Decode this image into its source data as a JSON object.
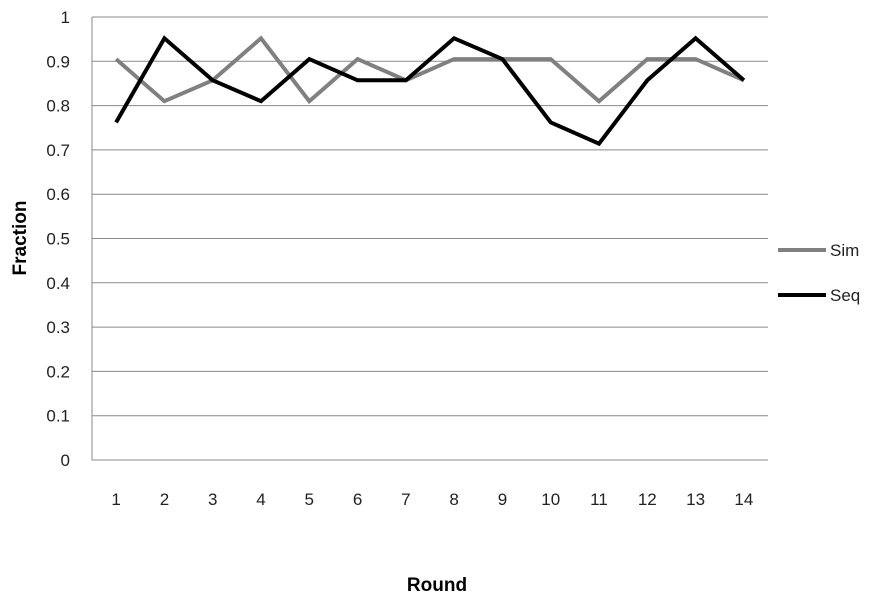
{
  "chart_data": {
    "type": "line",
    "title": "",
    "xlabel": "Round",
    "ylabel": "Fraction",
    "categories": [
      "1",
      "2",
      "3",
      "4",
      "5",
      "6",
      "7",
      "8",
      "9",
      "10",
      "11",
      "12",
      "13",
      "14"
    ],
    "ylim": [
      0,
      1
    ],
    "yticks": [
      "0",
      "0.1",
      "0.2",
      "0.3",
      "0.4",
      "0.5",
      "0.6",
      "0.7",
      "0.8",
      "0.9",
      "1"
    ],
    "grid": true,
    "legend_position": "right",
    "series": [
      {
        "name": "Sim",
        "color": "#808080",
        "values": [
          0.905,
          0.81,
          0.857,
          0.952,
          0.81,
          0.905,
          0.857,
          0.905,
          0.905,
          0.905,
          0.81,
          0.905,
          0.905,
          0.857
        ]
      },
      {
        "name": "Seq",
        "color": "#000000",
        "values": [
          0.762,
          0.952,
          0.857,
          0.81,
          0.905,
          0.857,
          0.857,
          0.952,
          0.905,
          0.762,
          0.714,
          0.857,
          0.952,
          0.857
        ]
      }
    ]
  }
}
